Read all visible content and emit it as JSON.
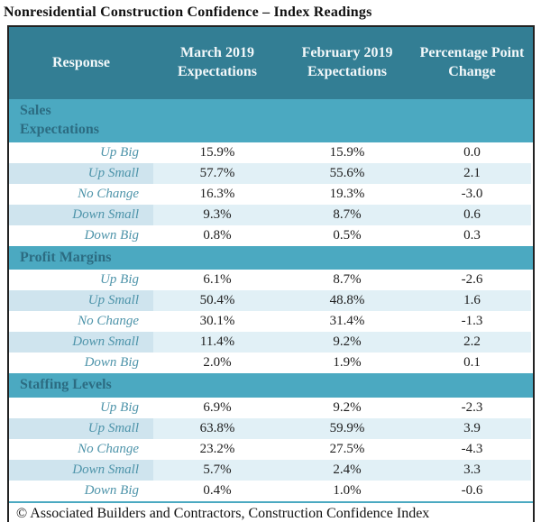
{
  "title": "Nonresidential Construction Confidence – Index Readings",
  "colors": {
    "header_bg": "#337e94",
    "section_band_bg": "#4ba9c1",
    "section_band_text": "#2c6c82",
    "alt_row_bg": "#e1f0f6",
    "alt_row_label_bg": "#cfe4ee",
    "row_label_text": "#4e94aa",
    "value_text": "#1d1d1d",
    "header_text": "#f3f8fa",
    "outer_border": "#222222"
  },
  "table": {
    "columns": [
      "Response",
      "March 2019 Expectations",
      "February 2019 Expectations",
      "Percentage Point Change"
    ],
    "sections": [
      {
        "name": "Sales Expectations",
        "rows": [
          {
            "label": "Up Big",
            "march": "15.9%",
            "february": "15.9%",
            "change": "0.0"
          },
          {
            "label": "Up Small",
            "march": "57.7%",
            "february": "55.6%",
            "change": "2.1"
          },
          {
            "label": "No Change",
            "march": "16.3%",
            "february": "19.3%",
            "change": "-3.0"
          },
          {
            "label": "Down Small",
            "march": "9.3%",
            "february": "8.7%",
            "change": "0.6"
          },
          {
            "label": "Down Big",
            "march": "0.8%",
            "february": "0.5%",
            "change": "0.3"
          }
        ]
      },
      {
        "name": "Profit Margins",
        "rows": [
          {
            "label": "Up Big",
            "march": "6.1%",
            "february": "8.7%",
            "change": "-2.6"
          },
          {
            "label": "Up Small",
            "march": "50.4%",
            "february": "48.8%",
            "change": "1.6"
          },
          {
            "label": "No Change",
            "march": "30.1%",
            "february": "31.4%",
            "change": "-1.3"
          },
          {
            "label": "Down Small",
            "march": "11.4%",
            "february": "9.2%",
            "change": "2.2"
          },
          {
            "label": "Down Big",
            "march": "2.0%",
            "february": "1.9%",
            "change": "0.1"
          }
        ]
      },
      {
        "name": "Staffing Levels",
        "rows": [
          {
            "label": "Up Big",
            "march": "6.9%",
            "february": "9.2%",
            "change": "-2.3"
          },
          {
            "label": "Up Small",
            "march": "63.8%",
            "february": "59.9%",
            "change": "3.9"
          },
          {
            "label": "No Change",
            "march": "23.2%",
            "february": "27.5%",
            "change": "-4.3"
          },
          {
            "label": "Down Small",
            "march": "5.7%",
            "february": "2.4%",
            "change": "3.3"
          },
          {
            "label": "Down Big",
            "march": "0.4%",
            "february": "1.0%",
            "change": "-0.6"
          }
        ]
      }
    ],
    "footer": "© Associated Builders and Contractors, Construction Confidence Index"
  }
}
